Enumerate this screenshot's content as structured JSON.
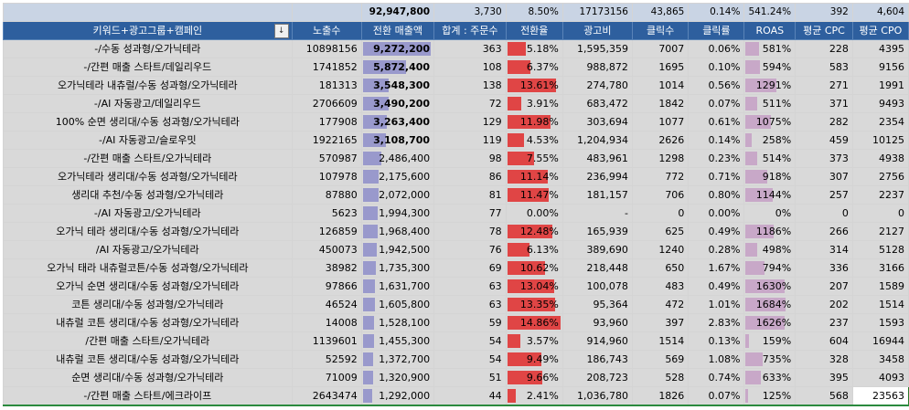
{
  "totals": {
    "sales": "92,947,800",
    "orders": "3,730",
    "conv_rate": "8.50%",
    "ad_cost": "17173156",
    "clicks": "43,865",
    "ctr": "0.14%",
    "roas": "541.24%",
    "avg_cpc": "392",
    "avg_cpo": "4,604"
  },
  "headers": {
    "name": "키워드+광고그룹+캠페인",
    "impressions": "노출수",
    "sales": "전환 매출액",
    "orders": "합계 : 주문수",
    "conv_rate": "전환율",
    "ad_cost": "광고비",
    "clicks": "클릭수",
    "ctr": "클릭률",
    "roas": "ROAS",
    "avg_cpc": "평균 CPC",
    "avg_cpo": "평균 CPO",
    "filter_icon": "↓"
  },
  "colors": {
    "header_bg": "#2e5f9e",
    "totals_bg": "#c9d4e4",
    "row_bg": "#d9d9d9",
    "sales_bar": "#9999cc",
    "conv_bar": "#e04545",
    "roas_bar": "#c8a8c8"
  },
  "rows": [
    {
      "name": "-/수동 성과형/오가닉테라",
      "impressions": "10898156",
      "sales": "9,272,200",
      "sales_bold": true,
      "orders": "363",
      "conv_rate": "5.18%",
      "ad_cost": "1,595,359",
      "clicks": "7007",
      "ctr": "0.06%",
      "roas": "581%",
      "avg_cpc": "228",
      "avg_cpo": "4395"
    },
    {
      "name": "-/간편 매출 스타트/데일리우드",
      "impressions": "1741852",
      "sales": "5,872,400",
      "sales_bold": true,
      "orders": "108",
      "conv_rate": "6.37%",
      "ad_cost": "988,872",
      "clicks": "1695",
      "ctr": "0.10%",
      "roas": "594%",
      "avg_cpc": "583",
      "avg_cpo": "9156"
    },
    {
      "name": "오가닉테라 내츄럴/수동 성과형/오가닉테라",
      "impressions": "181313",
      "sales": "3,548,300",
      "sales_bold": true,
      "orders": "138",
      "conv_rate": "13.61%",
      "ad_cost": "274,780",
      "clicks": "1014",
      "ctr": "0.56%",
      "roas": "1291%",
      "avg_cpc": "271",
      "avg_cpo": "1991"
    },
    {
      "name": "-/AI 자동광고/데일리우드",
      "impressions": "2706609",
      "sales": "3,490,200",
      "sales_bold": true,
      "orders": "72",
      "conv_rate": "3.91%",
      "ad_cost": "683,472",
      "clicks": "1842",
      "ctr": "0.07%",
      "roas": "511%",
      "avg_cpc": "371",
      "avg_cpo": "9493"
    },
    {
      "name": "100% 순면 생리대/수동 성과형/오가닉테라",
      "impressions": "177908",
      "sales": "3,263,400",
      "sales_bold": true,
      "orders": "129",
      "conv_rate": "11.98%",
      "ad_cost": "303,694",
      "clicks": "1077",
      "ctr": "0.61%",
      "roas": "1075%",
      "avg_cpc": "282",
      "avg_cpo": "2354"
    },
    {
      "name": "-/AI 자동광고/슬로우밋",
      "impressions": "1922165",
      "sales": "3,108,700",
      "sales_bold": true,
      "orders": "119",
      "conv_rate": "4.53%",
      "ad_cost": "1,204,934",
      "clicks": "2626",
      "ctr": "0.14%",
      "roas": "258%",
      "avg_cpc": "459",
      "avg_cpo": "10125"
    },
    {
      "name": "-/간편 매출 스타트/오가닉테라",
      "impressions": "570987",
      "sales": "2,486,400",
      "sales_bold": false,
      "orders": "98",
      "conv_rate": "7.55%",
      "ad_cost": "483,961",
      "clicks": "1298",
      "ctr": "0.23%",
      "roas": "514%",
      "avg_cpc": "373",
      "avg_cpo": "4938"
    },
    {
      "name": "오가닉테라 생리대/수동 성과형/오가닉테라",
      "impressions": "107978",
      "sales": "2,175,600",
      "sales_bold": false,
      "orders": "86",
      "conv_rate": "11.14%",
      "ad_cost": "236,994",
      "clicks": "772",
      "ctr": "0.71%",
      "roas": "918%",
      "avg_cpc": "307",
      "avg_cpo": "2756"
    },
    {
      "name": "생리대 추천/수동 성과형/오가닉테라",
      "impressions": "87880",
      "sales": "2,072,000",
      "sales_bold": false,
      "orders": "81",
      "conv_rate": "11.47%",
      "ad_cost": "181,157",
      "clicks": "706",
      "ctr": "0.80%",
      "roas": "1144%",
      "avg_cpc": "257",
      "avg_cpo": "2237"
    },
    {
      "name": "-/AI 자동광고/오가닉테라",
      "impressions": "5623",
      "sales": "1,994,300",
      "sales_bold": false,
      "orders": "77",
      "conv_rate": "0.00%",
      "ad_cost": "-",
      "clicks": "0",
      "ctr": "0.00%",
      "roas": "0%",
      "avg_cpc": "0",
      "avg_cpo": "0"
    },
    {
      "name": "오가닉 테라 생리대/수동 성과형/오가닉테라",
      "impressions": "126859",
      "sales": "1,968,400",
      "sales_bold": false,
      "orders": "78",
      "conv_rate": "12.48%",
      "ad_cost": "165,939",
      "clicks": "625",
      "ctr": "0.49%",
      "roas": "1186%",
      "avg_cpc": "266",
      "avg_cpo": "2127"
    },
    {
      "name": "/AI 자동광고/오가닉테라",
      "impressions": "450073",
      "sales": "1,942,500",
      "sales_bold": false,
      "orders": "76",
      "conv_rate": "6.13%",
      "ad_cost": "389,690",
      "clicks": "1240",
      "ctr": "0.28%",
      "roas": "498%",
      "avg_cpc": "314",
      "avg_cpo": "5128"
    },
    {
      "name": "오가닉 태라 내츄럴코튼/수동 성과형/오가닉테라",
      "impressions": "38982",
      "sales": "1,735,300",
      "sales_bold": false,
      "orders": "69",
      "conv_rate": "10.62%",
      "ad_cost": "218,448",
      "clicks": "650",
      "ctr": "1.67%",
      "roas": "794%",
      "avg_cpc": "336",
      "avg_cpo": "3166"
    },
    {
      "name": "오가닉 순면 생리대/수동 성과형/오가닉테라",
      "impressions": "97866",
      "sales": "1,631,700",
      "sales_bold": false,
      "orders": "63",
      "conv_rate": "13.04%",
      "ad_cost": "100,078",
      "clicks": "483",
      "ctr": "0.49%",
      "roas": "1630%",
      "avg_cpc": "207",
      "avg_cpo": "1589"
    },
    {
      "name": "코튼 생리대/수동 성과형/오가닉테라",
      "impressions": "46524",
      "sales": "1,605,800",
      "sales_bold": false,
      "orders": "63",
      "conv_rate": "13.35%",
      "ad_cost": "95,364",
      "clicks": "472",
      "ctr": "1.01%",
      "roas": "1684%",
      "avg_cpc": "202",
      "avg_cpo": "1514"
    },
    {
      "name": "내츄럴 코튼 생리대/수동 성과형/오가닉테라",
      "impressions": "14008",
      "sales": "1,528,100",
      "sales_bold": false,
      "orders": "59",
      "conv_rate": "14.86%",
      "ad_cost": "93,960",
      "clicks": "397",
      "ctr": "2.83%",
      "roas": "1626%",
      "avg_cpc": "237",
      "avg_cpo": "1593"
    },
    {
      "name": "/간편 매출 스타트/오가닉테라",
      "impressions": "1139601",
      "sales": "1,455,300",
      "sales_bold": false,
      "orders": "54",
      "conv_rate": "3.57%",
      "ad_cost": "914,960",
      "clicks": "1514",
      "ctr": "0.13%",
      "roas": "159%",
      "avg_cpc": "604",
      "avg_cpo": "16944"
    },
    {
      "name": "내츄럴 코튼 생리대/수동 성과형/오가닉테라",
      "impressions": "52592",
      "sales": "1,372,700",
      "sales_bold": false,
      "orders": "54",
      "conv_rate": "9.49%",
      "ad_cost": "186,743",
      "clicks": "569",
      "ctr": "1.08%",
      "roas": "735%",
      "avg_cpc": "328",
      "avg_cpo": "3458"
    },
    {
      "name": "순면 생리대/수동 성과형/오가닉테라",
      "impressions": "71009",
      "sales": "1,320,900",
      "sales_bold": false,
      "orders": "51",
      "conv_rate": "9.66%",
      "ad_cost": "208,723",
      "clicks": "528",
      "ctr": "0.74%",
      "roas": "633%",
      "avg_cpc": "395",
      "avg_cpo": "4093"
    },
    {
      "name": "-/간편 매출 스타트/에크라이프",
      "impressions": "2643474",
      "sales": "1,292,000",
      "sales_bold": false,
      "orders": "44",
      "conv_rate": "2.41%",
      "ad_cost": "1,036,780",
      "clicks": "1826",
      "ctr": "0.07%",
      "roas": "125%",
      "avg_cpc": "568",
      "avg_cpo": "23563",
      "cpo_highlight": true
    }
  ],
  "bar_fractions": {
    "sales": [
      1.0,
      0.633,
      0.383,
      0.376,
      0.352,
      0.335,
      0.268,
      0.235,
      0.223,
      0.215,
      0.212,
      0.209,
      0.187,
      0.176,
      0.173,
      0.165,
      0.157,
      0.148,
      0.142,
      0.139
    ],
    "conv_rate": [
      0.349,
      0.429,
      0.916,
      0.263,
      0.806,
      0.305,
      0.508,
      0.75,
      0.772,
      0.0,
      0.84,
      0.413,
      0.715,
      0.878,
      0.898,
      1.0,
      0.24,
      0.639,
      0.65,
      0.162
    ],
    "roas": [
      0.345,
      0.353,
      0.767,
      0.303,
      0.638,
      0.153,
      0.305,
      0.545,
      0.679,
      0.0,
      0.704,
      0.296,
      0.471,
      0.968,
      1.0,
      0.966,
      0.094,
      0.436,
      0.376,
      0.074
    ]
  }
}
